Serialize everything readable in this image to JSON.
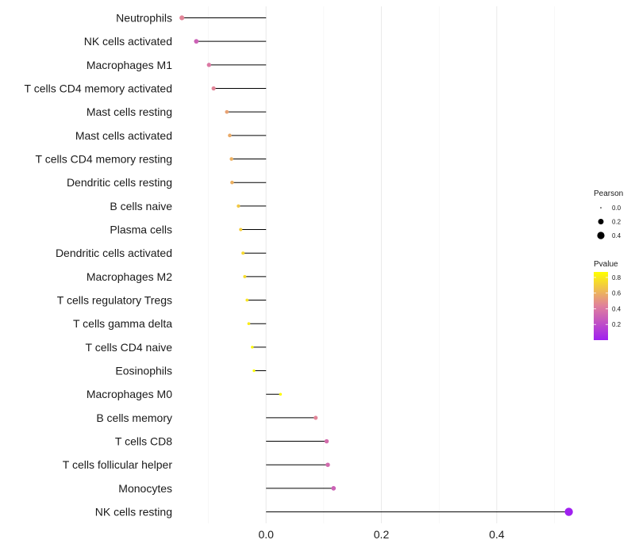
{
  "chart_data": {
    "type": "lollipop",
    "title": "",
    "xlabel": "",
    "ylabel": "",
    "xlim": [
      -0.1476,
      0.5393
    ],
    "xticks": [
      0.0,
      0.2,
      0.4
    ],
    "xtick_labels": [
      "0.0",
      "0.2",
      "0.4"
    ],
    "minor_xticks": [
      -0.1,
      0.1,
      0.3,
      0.5
    ],
    "grid": true,
    "legend_position": "right",
    "points": [
      {
        "label": "Neutrophils",
        "pearson": -0.146,
        "pvalue": 0.45
      },
      {
        "label": "NK cells activated",
        "pearson": -0.121,
        "pvalue": 0.3
      },
      {
        "label": "Macrophages M1",
        "pearson": -0.099,
        "pvalue": 0.4
      },
      {
        "label": "T cells CD4 memory activated",
        "pearson": -0.091,
        "pvalue": 0.45
      },
      {
        "label": "Mast cells resting",
        "pearson": -0.068,
        "pvalue": 0.55
      },
      {
        "label": "Mast cells activated",
        "pearson": -0.063,
        "pvalue": 0.58
      },
      {
        "label": "T cells CD4 memory resting",
        "pearson": -0.06,
        "pvalue": 0.6
      },
      {
        "label": "Dendritic cells resting",
        "pearson": -0.059,
        "pvalue": 0.6
      },
      {
        "label": "B cells naive",
        "pearson": -0.048,
        "pvalue": 0.68
      },
      {
        "label": "Plasma cells",
        "pearson": -0.044,
        "pvalue": 0.7
      },
      {
        "label": "Dendritic cells activated",
        "pearson": -0.04,
        "pvalue": 0.74
      },
      {
        "label": "Macrophages M2",
        "pearson": -0.037,
        "pvalue": 0.75
      },
      {
        "label": "T cells regulatory  Tregs",
        "pearson": -0.033,
        "pvalue": 0.78
      },
      {
        "label": "T cells gamma delta",
        "pearson": -0.03,
        "pvalue": 0.8
      },
      {
        "label": "T cells CD4 naive",
        "pearson": -0.024,
        "pvalue": 0.85
      },
      {
        "label": "Eosinophils",
        "pearson": -0.021,
        "pvalue": 0.87
      },
      {
        "label": "Macrophages M0",
        "pearson": 0.025,
        "pvalue": 0.85
      },
      {
        "label": "B cells memory",
        "pearson": 0.086,
        "pvalue": 0.45
      },
      {
        "label": "T cells CD8",
        "pearson": 0.105,
        "pvalue": 0.35
      },
      {
        "label": "T cells follicular helper",
        "pearson": 0.107,
        "pvalue": 0.34
      },
      {
        "label": "Monocytes",
        "pearson": 0.117,
        "pvalue": 0.3
      },
      {
        "label": "NK cells resting",
        "pearson": 0.525,
        "pvalue": 0.0
      }
    ],
    "size_legend": {
      "title": "Pearson",
      "values": [
        0.0,
        0.2,
        0.4
      ],
      "labels": [
        "0.0",
        "0.2",
        "0.4"
      ]
    },
    "color_legend": {
      "title": "Pvalue",
      "ticks": [
        0.8,
        0.6,
        0.4,
        0.2
      ],
      "labels": [
        "0.8",
        "0.6",
        "0.4",
        "0.2"
      ],
      "range": [
        0.0,
        0.87
      ],
      "low_color": "#a020f0",
      "mid_color": "#e0809c",
      "high_color": "#ffff00"
    }
  }
}
